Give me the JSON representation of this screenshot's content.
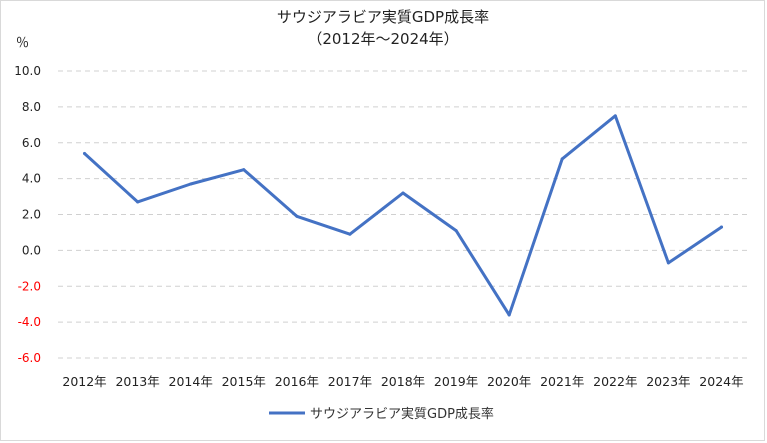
{
  "chart_data": {
    "type": "line",
    "title": "サウジアラビア実質GDP成長率",
    "subtitle": "（2012年～2024年）",
    "ylabel": "％",
    "xlabel": "",
    "categories": [
      "2012年",
      "2013年",
      "2014年",
      "2015年",
      "2016年",
      "2017年",
      "2018年",
      "2019年",
      "2020年",
      "2021年",
      "2022年",
      "2023年",
      "2024年"
    ],
    "series": [
      {
        "name": "サウジアラビア実質GDP成長率",
        "values": [
          5.4,
          2.7,
          3.7,
          4.5,
          1.9,
          0.9,
          3.2,
          1.1,
          -3.6,
          5.1,
          7.5,
          -0.7,
          1.3
        ],
        "color": "#4472c4"
      }
    ],
    "ylim": [
      -6.0,
      10.0
    ],
    "yticks": [
      "10.0",
      "8.0",
      "6.0",
      "4.0",
      "2.0",
      "0.0",
      "-2.0",
      "-4.0",
      "-6.0"
    ],
    "negative_tick_color": "#ff0000",
    "grid": "horizontal dashed",
    "legend": "bottom"
  }
}
